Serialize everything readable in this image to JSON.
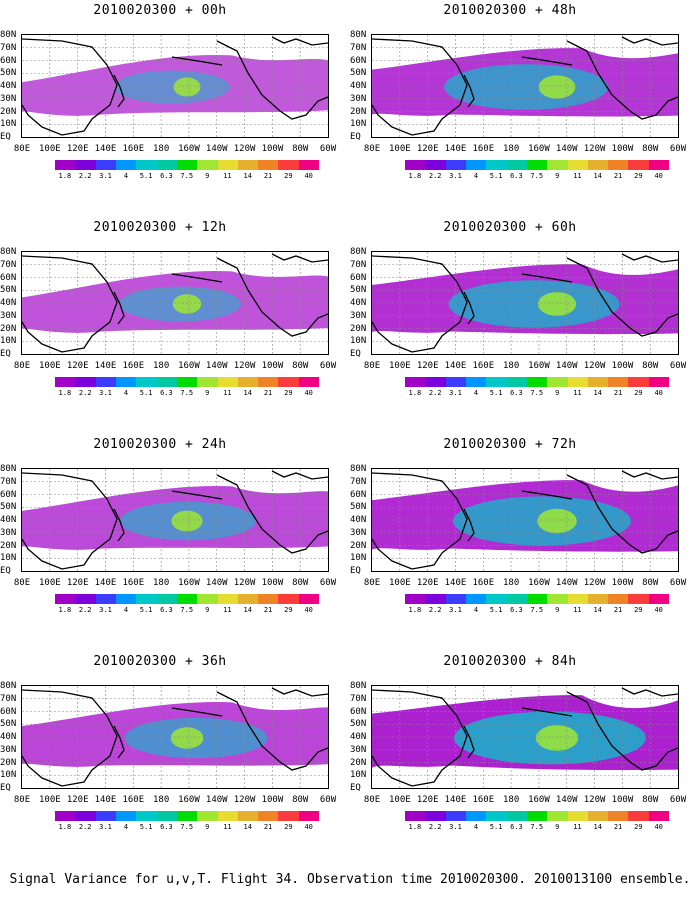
{
  "panels": [
    {
      "title": "2010020300 + 00h",
      "level": 0.25
    },
    {
      "title": "2010020300 + 48h",
      "level": 0.6
    },
    {
      "title": "2010020300 + 12h",
      "level": 0.3
    },
    {
      "title": "2010020300 + 60h",
      "level": 0.65
    },
    {
      "title": "2010020300 + 24h",
      "level": 0.4
    },
    {
      "title": "2010020300 + 72h",
      "level": 0.7
    },
    {
      "title": "2010020300 + 36h",
      "level": 0.45
    },
    {
      "title": "2010020300 + 84h",
      "level": 0.8
    }
  ],
  "lat_labels": [
    "80N",
    "70N",
    "60N",
    "50N",
    "40N",
    "30N",
    "20N",
    "10N",
    "EQ"
  ],
  "lon_labels": [
    "80E",
    "100E",
    "120E",
    "140E",
    "160E",
    "180",
    "160W",
    "140W",
    "120W",
    "100W",
    "80W",
    "60W"
  ],
  "colorbar": {
    "labels": [
      "1.8",
      "2.2",
      "3.1",
      "4",
      "5.1",
      "6.3",
      "7.5",
      "9",
      "11",
      "14",
      "21",
      "29",
      "40"
    ],
    "colors": [
      "#a000c8",
      "#7d00dc",
      "#3c3cff",
      "#0096ff",
      "#00c8c8",
      "#00c8a0",
      "#00dc00",
      "#a0e632",
      "#e6dc32",
      "#e6af2d",
      "#f08228",
      "#fa3c3c",
      "#f00082"
    ]
  },
  "footer": "Signal Variance for u,v,T. Flight 34. Observation time 2010020300. 2010013100 ensemble."
}
